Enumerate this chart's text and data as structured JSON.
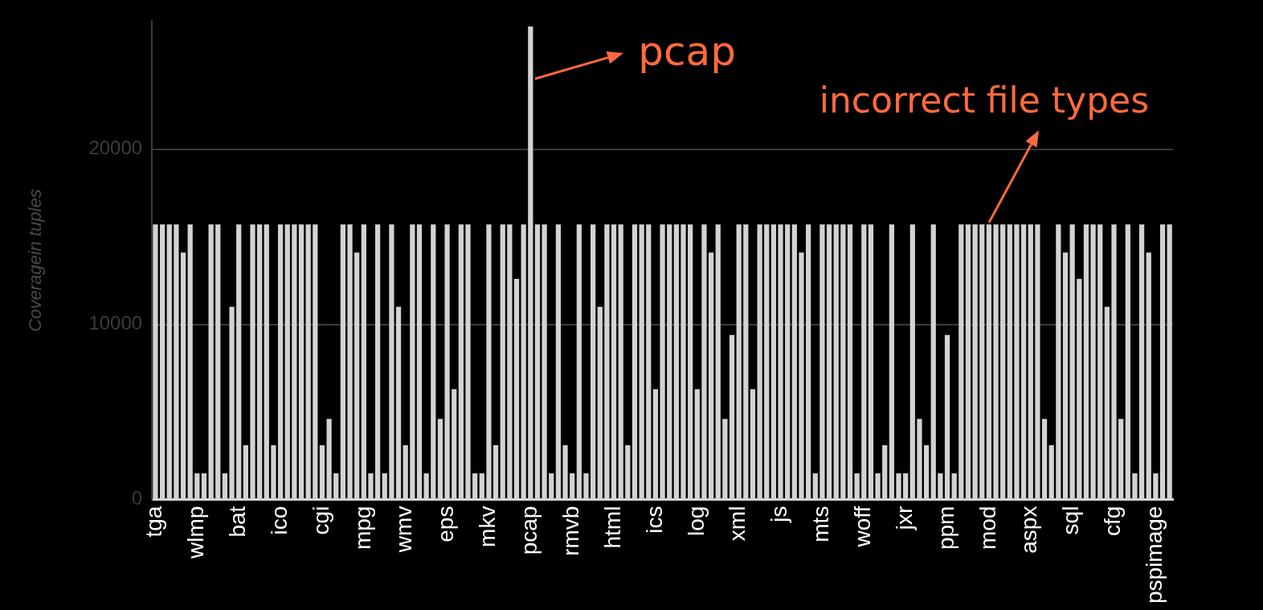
{
  "chart_data": {
    "type": "bar",
    "ylabel": "Coveragein tuples",
    "categories": [
      "tga",
      null,
      null,
      null,
      null,
      null,
      "wlmp",
      null,
      null,
      null,
      null,
      null,
      "bat",
      null,
      null,
      null,
      null,
      null,
      "ico",
      null,
      null,
      null,
      null,
      null,
      "cgi",
      null,
      null,
      null,
      null,
      null,
      "mpg",
      null,
      null,
      null,
      null,
      null,
      "wmv",
      null,
      null,
      null,
      null,
      null,
      "eps",
      null,
      null,
      null,
      null,
      null,
      "mkv",
      null,
      null,
      null,
      null,
      null,
      "pcap",
      null,
      null,
      null,
      null,
      null,
      "rmvb",
      null,
      null,
      null,
      null,
      null,
      "html",
      null,
      null,
      null,
      null,
      null,
      "ics",
      null,
      null,
      null,
      null,
      null,
      "log",
      null,
      null,
      null,
      null,
      null,
      "xml",
      null,
      null,
      null,
      null,
      null,
      "js",
      null,
      null,
      null,
      null,
      null,
      "mts",
      null,
      null,
      null,
      null,
      null,
      "woff",
      null,
      null,
      null,
      null,
      null,
      "jxr",
      null,
      null,
      null,
      null,
      null,
      "ppm",
      null,
      null,
      null,
      null,
      null,
      "mod",
      null,
      null,
      null,
      null,
      null,
      "aspx",
      null,
      null,
      null,
      null,
      null,
      "sql",
      null,
      null,
      null,
      null,
      null,
      "cfg",
      null,
      null,
      null,
      null,
      null,
      "pspimage",
      null,
      null
    ],
    "values": [
      15700,
      15700,
      15700,
      15700,
      14100,
      15700,
      1500,
      1500,
      15700,
      15700,
      1500,
      11000,
      15700,
      3100,
      15700,
      15700,
      15700,
      3100,
      15700,
      15700,
      15700,
      15700,
      15700,
      15700,
      3100,
      4600,
      1500,
      15700,
      15700,
      14100,
      15700,
      1500,
      15700,
      1500,
      15700,
      11000,
      3100,
      15700,
      15700,
      1500,
      15700,
      4600,
      15700,
      6300,
      15700,
      15700,
      1500,
      1500,
      15700,
      3100,
      15700,
      15700,
      12600,
      15700,
      27000,
      15700,
      15700,
      1500,
      15700,
      3100,
      1500,
      15700,
      1500,
      15700,
      11000,
      15700,
      15700,
      15700,
      3100,
      15700,
      15700,
      15700,
      6300,
      15700,
      15700,
      15700,
      15700,
      15700,
      6300,
      15700,
      14100,
      15700,
      4600,
      9400,
      15700,
      15700,
      6300,
      15700,
      15700,
      15700,
      15700,
      15700,
      15700,
      14100,
      15700,
      1500,
      15700,
      15700,
      15700,
      15700,
      15700,
      1500,
      15700,
      15700,
      1500,
      3100,
      15700,
      1500,
      1500,
      15700,
      4600,
      3100,
      15700,
      1500,
      9400,
      1500,
      15700,
      15700,
      15700,
      15700,
      15700,
      15700,
      15700,
      15700,
      15700,
      15700,
      15700,
      15700,
      4600,
      3100,
      15700,
      14100,
      15700,
      12600,
      15700,
      15700,
      15700,
      11000,
      15700,
      4600,
      15700,
      1500,
      15700,
      14100,
      1500,
      15700,
      15700
    ],
    "color": "#d3d3d3",
    "ylim": [
      0,
      27300
    ],
    "yticks": [
      0,
      10000,
      20000
    ],
    "grid": "y",
    "annotations": [
      {
        "text": "pcap",
        "x": "pcap",
        "y": 24000
      },
      {
        "text": "incorrect file types",
        "x": "mod",
        "y": 15700
      }
    ]
  }
}
